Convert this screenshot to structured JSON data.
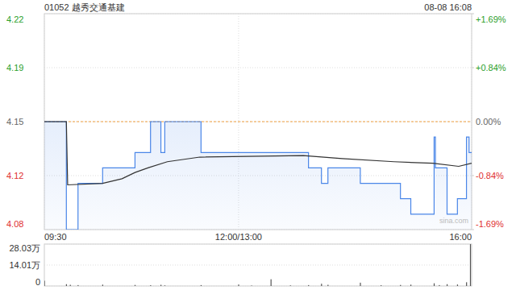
{
  "chart_data": [
    {
      "type": "line",
      "title": "01052 越秀交通基建",
      "subtitle": "08-08 16:08",
      "annotations": [
        "sina.com"
      ],
      "xlim": [
        0,
        330
      ],
      "xticks": [
        {
          "value": 0,
          "label": "09:30"
        },
        {
          "value": 150,
          "label": "12:00/13:00"
        },
        {
          "value": 330,
          "label": "16:00"
        }
      ],
      "ylim": [
        4.08,
        4.22
      ],
      "yticks": [
        4.22,
        {
          "value": 4.185,
          "label": "4.19"
        },
        4.15,
        {
          "value": 4.115,
          "label": "4.12"
        },
        4.08
      ],
      "y2lim": [
        -1.687,
        1.687
      ],
      "y2ticks": [
        {
          "value": 1.687,
          "label": "+1.69%"
        },
        {
          "value": 0.843,
          "label": "+0.84%"
        },
        {
          "value": 0,
          "label": "0.00%"
        },
        {
          "value": -0.843,
          "label": "-0.84%"
        },
        {
          "value": -1.687,
          "label": "-1.69%"
        }
      ],
      "grid": true,
      "series": [
        {
          "color": "#4a86e8",
          "line_style": "step",
          "x": [
            0,
            17,
            26,
            45,
            70,
            82,
            90,
            93,
            121,
            204,
            214,
            219,
            244,
            275,
            283,
            301,
            302,
            311,
            319,
            326,
            328,
            330
          ],
          "values": [
            4.15,
            4.08,
            4.11,
            4.12,
            4.13,
            4.15,
            4.13,
            4.15,
            4.13,
            4.12,
            4.11,
            4.12,
            4.11,
            4.1,
            4.09,
            4.14,
            4.12,
            4.09,
            4.1,
            4.14,
            4.13,
            4.13
          ]
        },
        {
          "color": "#333333",
          "line_style": "solid",
          "x": [
            0,
            17,
            18,
            45,
            60,
            70,
            80,
            95,
            120,
            200,
            230,
            270,
            300,
            320,
            330
          ],
          "values": [
            4.15,
            4.15,
            4.109,
            4.11,
            4.113,
            4.117,
            4.12,
            4.124,
            4.127,
            4.128,
            4.126,
            4.124,
            4.123,
            4.121,
            4.123
          ]
        }
      ]
    },
    {
      "type": "bar",
      "color": "#555555",
      "xlim": [
        0,
        330
      ],
      "ylim": [
        0,
        28.03
      ],
      "yticks": [
        {
          "value": 28.03,
          "label": "28.03万"
        },
        {
          "value": 14.01,
          "label": "14.01万"
        },
        0
      ],
      "grid": true,
      "x": [
        0,
        17,
        20,
        26,
        45,
        70,
        82,
        90,
        93,
        121,
        150,
        160,
        175,
        190,
        204,
        214,
        219,
        244,
        260,
        275,
        283,
        301,
        305,
        311,
        319,
        326,
        329
      ],
      "values": [
        3.5,
        1.2,
        0.8,
        0.6,
        0.9,
        0.7,
        0.5,
        0.8,
        0.4,
        0.6,
        1.0,
        0.3,
        4.5,
        0.4,
        0.6,
        1.5,
        0.8,
        2.2,
        0.5,
        0.7,
        0.9,
        1.8,
        0.6,
        1.2,
        1.0,
        2.5,
        28.0
      ]
    }
  ]
}
